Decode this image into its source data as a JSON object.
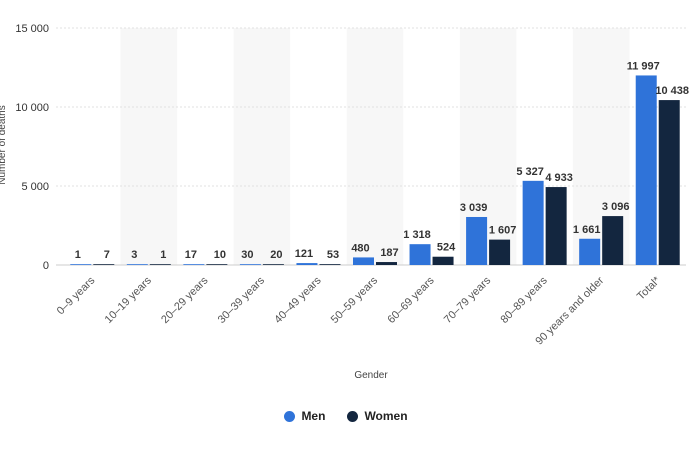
{
  "chart_data": {
    "type": "bar",
    "title": "",
    "xlabel": "Gender",
    "ylabel": "Number of deaths",
    "ylim": [
      0,
      15000
    ],
    "yticks": [
      0,
      5000,
      10000,
      15000
    ],
    "ytick_labels": [
      "0",
      "5 000",
      "10 000",
      "15 000"
    ],
    "grid": true,
    "legend_position": "bottom-center",
    "categories": [
      "0–9 years",
      "10–19 years",
      "20–29 years",
      "30–39 years",
      "40–49 years",
      "50–59 years",
      "60–69 years",
      "70–79 years",
      "80–89 years",
      "90 years and older",
      "Total*"
    ],
    "series": [
      {
        "name": "Men",
        "color": "#2f73d9",
        "values": [
          1,
          3,
          17,
          30,
          121,
          480,
          1318,
          3039,
          5327,
          1661,
          11997
        ],
        "labels": [
          "1",
          "3",
          "17",
          "30",
          "121",
          "480",
          "1 318",
          "3 039",
          "5 327",
          "1 661",
          "11 997"
        ]
      },
      {
        "name": "Women",
        "color": "#13263f",
        "values": [
          7,
          1,
          10,
          20,
          53,
          187,
          524,
          1607,
          4933,
          3096,
          10438
        ],
        "labels": [
          "7",
          "1",
          "10",
          "20",
          "53",
          "187",
          "524",
          "1 607",
          "4 933",
          "3 096",
          "10 438"
        ]
      }
    ]
  }
}
